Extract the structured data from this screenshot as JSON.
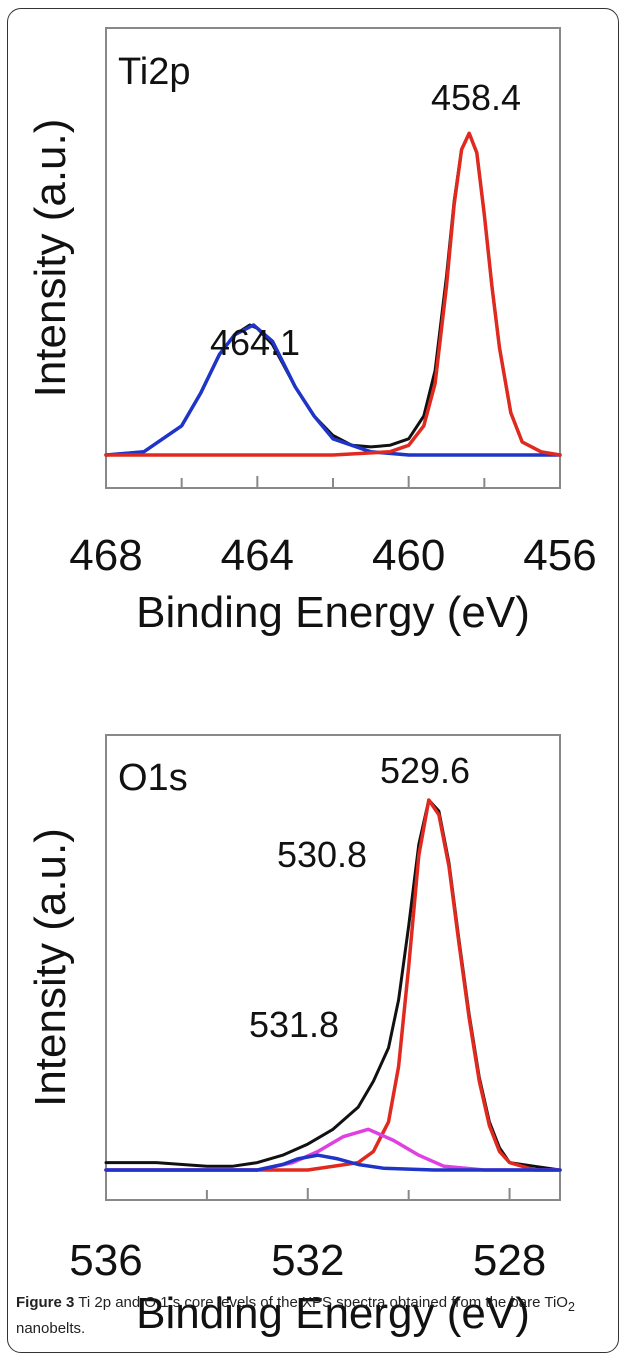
{
  "chart_data": [
    {
      "type": "line",
      "panel_label": "Ti2p",
      "xlabel": "Binding Energy (eV)",
      "ylabel": "Intensity (a.u.)",
      "xlim": [
        468,
        456
      ],
      "x_ticks": [
        "468",
        "464",
        "460",
        "456"
      ],
      "reversed_x": true,
      "grid": false,
      "legend": "none",
      "annotations": [
        {
          "text": "458.4",
          "x": 458.4
        },
        {
          "text": "464.1",
          "x": 464.1
        }
      ],
      "series": [
        {
          "role": "measured",
          "color": "#111111",
          "x": [
            468.0,
            467.0,
            466.0,
            465.5,
            465.0,
            464.6,
            464.2,
            464.0,
            463.6,
            463.0,
            462.5,
            462.0,
            461.5,
            461.0,
            460.5,
            460.0,
            459.6,
            459.3,
            459.0,
            458.8,
            458.6,
            458.4,
            458.2,
            458.0,
            457.8,
            457.6,
            457.3,
            457.0,
            456.5,
            456.0
          ],
          "y": [
            0.0,
            0.01,
            0.09,
            0.19,
            0.31,
            0.37,
            0.4,
            0.39,
            0.34,
            0.21,
            0.12,
            0.06,
            0.03,
            0.025,
            0.03,
            0.05,
            0.12,
            0.26,
            0.55,
            0.78,
            0.94,
            0.99,
            0.93,
            0.74,
            0.52,
            0.33,
            0.13,
            0.04,
            0.01,
            0.0
          ]
        },
        {
          "role": "fit-2p1/2",
          "color": "#1f35c8",
          "x": [
            468.0,
            467.0,
            466.0,
            465.5,
            465.0,
            464.6,
            464.1,
            463.6,
            463.0,
            462.5,
            462.0,
            461.0,
            460.0,
            458.0,
            456.0
          ],
          "y": [
            0.0,
            0.01,
            0.09,
            0.19,
            0.31,
            0.37,
            0.4,
            0.35,
            0.21,
            0.12,
            0.05,
            0.01,
            0.0,
            0.0,
            0.0
          ]
        },
        {
          "role": "fit-2p3/2",
          "color": "#e02a1f",
          "x": [
            468.0,
            462.0,
            460.5,
            460.0,
            459.6,
            459.3,
            459.0,
            458.8,
            458.6,
            458.4,
            458.2,
            458.0,
            457.8,
            457.6,
            457.3,
            457.0,
            456.5,
            456.0
          ],
          "y": [
            0.0,
            0.0,
            0.01,
            0.03,
            0.09,
            0.22,
            0.52,
            0.77,
            0.94,
            0.99,
            0.93,
            0.74,
            0.52,
            0.33,
            0.13,
            0.04,
            0.01,
            0.0
          ]
        }
      ]
    },
    {
      "type": "line",
      "panel_label": "O1s",
      "xlabel": "Binding Energy (eV)",
      "ylabel": "Intensity (a.u.)",
      "xlim": [
        536,
        527
      ],
      "x_ticks": [
        "536",
        "532",
        "528"
      ],
      "reversed_x": true,
      "grid": false,
      "legend": "none",
      "annotations": [
        {
          "text": "529.6",
          "x": 529.6
        },
        {
          "text": "530.8",
          "x": 530.8
        },
        {
          "text": "531.8",
          "x": 531.8
        }
      ],
      "series": [
        {
          "role": "measured",
          "color": "#111111",
          "x": [
            536.0,
            535.0,
            534.0,
            533.5,
            533.0,
            532.5,
            532.0,
            531.5,
            531.0,
            530.7,
            530.4,
            530.2,
            530.0,
            529.8,
            529.6,
            529.4,
            529.2,
            529.0,
            528.8,
            528.6,
            528.4,
            528.2,
            528.0,
            527.5,
            527.0
          ],
          "y": [
            0.02,
            0.02,
            0.01,
            0.01,
            0.02,
            0.04,
            0.07,
            0.11,
            0.17,
            0.24,
            0.33,
            0.46,
            0.66,
            0.88,
            1.0,
            0.97,
            0.83,
            0.62,
            0.42,
            0.25,
            0.13,
            0.06,
            0.02,
            0.01,
            0.0
          ]
        },
        {
          "role": "fit-main",
          "color": "#e02a1f",
          "x": [
            536.0,
            532.0,
            531.0,
            530.7,
            530.4,
            530.2,
            530.0,
            529.8,
            529.6,
            529.4,
            529.2,
            529.0,
            528.8,
            528.6,
            528.4,
            528.2,
            528.0,
            527.5,
            527.0
          ],
          "y": [
            0.0,
            0.0,
            0.02,
            0.05,
            0.13,
            0.28,
            0.55,
            0.85,
            1.0,
            0.96,
            0.82,
            0.61,
            0.41,
            0.24,
            0.12,
            0.05,
            0.02,
            0.0,
            0.0
          ]
        },
        {
          "role": "fit-530.8",
          "color": "#e040e0",
          "x": [
            536.0,
            533.0,
            532.3,
            531.8,
            531.3,
            530.8,
            530.3,
            529.8,
            529.3,
            528.5,
            527.0
          ],
          "y": [
            0.0,
            0.0,
            0.02,
            0.05,
            0.09,
            0.11,
            0.08,
            0.04,
            0.01,
            0.0,
            0.0
          ]
        },
        {
          "role": "fit-531.8",
          "color": "#1f35c8",
          "x": [
            536.0,
            533.0,
            532.5,
            532.2,
            531.8,
            531.4,
            531.0,
            530.5,
            529.5,
            527.0
          ],
          "y": [
            0.0,
            0.0,
            0.015,
            0.03,
            0.04,
            0.03,
            0.015,
            0.005,
            0.0,
            0.0
          ]
        }
      ]
    }
  ],
  "caption": {
    "label": "Figure 3",
    "text_before": " Ti 2p and O 1 s core levels of the XPS spectra obtained from the bare TiO",
    "subscript": "2",
    "text_after": " nanobelts."
  }
}
